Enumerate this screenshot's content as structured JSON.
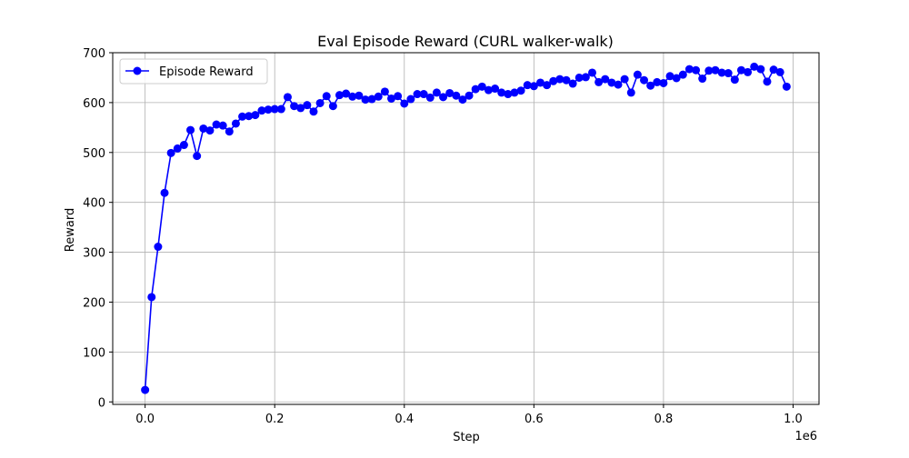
{
  "chart_data": {
    "type": "line",
    "title": "Eval Episode Reward (CURL walker-walk)",
    "xlabel": "Step",
    "ylabel": "Reward",
    "x_offset_label": "1e6",
    "xlim": [
      -0.05,
      1.04
    ],
    "ylim": [
      -5,
      700
    ],
    "xticks": [
      0.0,
      0.2,
      0.4,
      0.6,
      0.8,
      1.0
    ],
    "xtick_labels": [
      "0.0",
      "0.2",
      "0.4",
      "0.6",
      "0.8",
      "1.0"
    ],
    "yticks": [
      0,
      100,
      200,
      300,
      400,
      500,
      600,
      700
    ],
    "ytick_labels": [
      "0",
      "100",
      "200",
      "300",
      "400",
      "500",
      "600",
      "700"
    ],
    "grid": true,
    "legend_position": "top-left",
    "x_values_in_millions_of_steps": true,
    "series": [
      {
        "name": "Episode Reward",
        "color": "#0000ff",
        "marker": "circle",
        "x": [
          0.0,
          0.01,
          0.02,
          0.03,
          0.04,
          0.05,
          0.06,
          0.07,
          0.08,
          0.09,
          0.1,
          0.11,
          0.12,
          0.13,
          0.14,
          0.15,
          0.16,
          0.17,
          0.18,
          0.19,
          0.2,
          0.21,
          0.22,
          0.23,
          0.24,
          0.25,
          0.26,
          0.27,
          0.28,
          0.29,
          0.3,
          0.31,
          0.32,
          0.33,
          0.34,
          0.35,
          0.36,
          0.37,
          0.38,
          0.39,
          0.4,
          0.41,
          0.42,
          0.43,
          0.44,
          0.45,
          0.46,
          0.47,
          0.48,
          0.49,
          0.5,
          0.51,
          0.52,
          0.53,
          0.54,
          0.55,
          0.56,
          0.57,
          0.58,
          0.59,
          0.6,
          0.61,
          0.62,
          0.63,
          0.64,
          0.65,
          0.66,
          0.67,
          0.68,
          0.69,
          0.7,
          0.71,
          0.72,
          0.73,
          0.74,
          0.75,
          0.76,
          0.77,
          0.78,
          0.79,
          0.8,
          0.81,
          0.82,
          0.83,
          0.84,
          0.85,
          0.86,
          0.87,
          0.88,
          0.89,
          0.9,
          0.91,
          0.92,
          0.93,
          0.94,
          0.95,
          0.96,
          0.97,
          0.98,
          0.99
        ],
        "y": [
          24,
          210,
          311,
          419,
          499,
          508,
          515,
          545,
          493,
          548,
          544,
          556,
          554,
          542,
          558,
          572,
          573,
          575,
          584,
          586,
          587,
          587,
          611,
          593,
          589,
          595,
          582,
          599,
          613,
          593,
          615,
          618,
          612,
          614,
          606,
          607,
          612,
          622,
          608,
          613,
          598,
          607,
          617,
          617,
          610,
          620,
          611,
          619,
          614,
          606,
          614,
          627,
          632,
          625,
          628,
          620,
          617,
          620,
          624,
          635,
          633,
          640,
          635,
          643,
          647,
          645,
          638,
          650,
          651,
          660,
          641,
          647,
          640,
          636,
          647,
          620,
          656,
          645,
          634,
          641,
          639,
          653,
          649,
          656,
          667,
          665,
          648,
          664,
          665,
          660,
          659,
          646,
          665,
          661,
          672,
          667,
          642,
          666,
          661,
          632
        ]
      }
    ]
  }
}
